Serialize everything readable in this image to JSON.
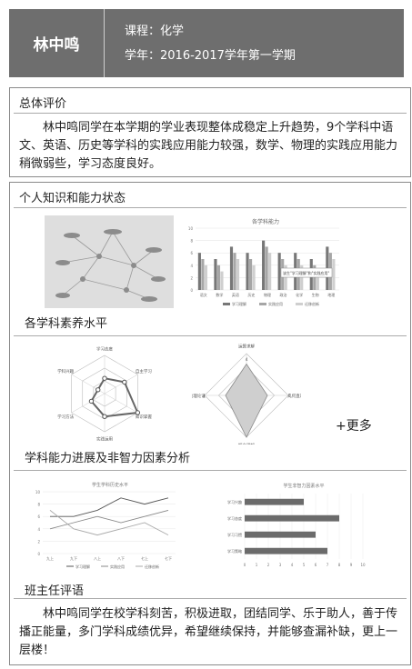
{
  "header": {
    "name": "林中鸣",
    "course": "课程：化学",
    "term": "学年：2016-2017学年第一学期"
  },
  "overall": {
    "title": "总体评价",
    "text": "林中鸣同学在本学期的学业表现整体成稳定上升趋势，9个学科中语文、英语、历史等学科的实践应用能力较强，数学、物理的实践应用能力稍微弱些，学习态度良好。"
  },
  "knowledge": {
    "title": "个人知识和能力状态",
    "literacy_label": "各学科素养水平",
    "ability_label": "学科能力进展及非智力因素分析",
    "more_label": "+更多",
    "teacher_title": "班主任评语",
    "teacher_text": "林中鸣同学在校学科刻苦，积极进取，团结同学、乐于助人，善于传播正能量，多门学科成绩优异，希望继续保持，并能够查漏补缺，更上一层楼！"
  },
  "chart_data": [
    {
      "type": "bar",
      "title": "各学科能力",
      "categories": [
        "语文",
        "数学",
        "英语",
        "历史",
        "物理",
        "政治",
        "化学",
        "生物",
        "地理"
      ],
      "series": [
        {
          "name": "学习理解",
          "values": [
            6,
            5,
            7,
            6,
            8,
            6,
            6,
            5,
            7
          ]
        },
        {
          "name": "实践应用",
          "values": [
            5,
            4,
            6,
            5,
            7,
            5,
            5,
            4,
            6
          ]
        },
        {
          "name": "迁移创新",
          "values": [
            4,
            3,
            5,
            4,
            6,
            4,
            4,
            3,
            5
          ]
        }
      ],
      "ylim": [
        0,
        10
      ],
      "annotation": "该生\"学习理解\"和\"实践应用\""
    },
    {
      "type": "radar",
      "title": "",
      "axes": [
        "学习态度",
        "自主学习",
        "知识掌握",
        "实践运用",
        "学习方法",
        "学科兴趣"
      ],
      "values": [
        2,
        3,
        5,
        3,
        2,
        1
      ]
    },
    {
      "type": "radar",
      "title": "",
      "axes": [
        "运算求解",
        "几何直观",
        "概念理解",
        "推理论证"
      ],
      "ticks": [
        "4",
        "4",
        "4",
        "4"
      ],
      "values": [
        3,
        2,
        4,
        2
      ]
    },
    {
      "type": "line",
      "title": "学生学科历史水平",
      "categories": [
        "九上",
        "九下",
        "八上",
        "八下",
        "七上",
        "七下"
      ],
      "series": [
        {
          "name": "学习理解",
          "values": [
            6,
            6,
            7,
            9,
            8,
            9
          ]
        },
        {
          "name": "实践应用",
          "values": [
            4,
            5,
            6,
            5,
            6,
            7
          ]
        },
        {
          "name": "迁移创新",
          "values": [
            7,
            4,
            3,
            4,
            5,
            3
          ]
        }
      ],
      "ylim": [
        0,
        10
      ]
    },
    {
      "type": "bar",
      "title": "学生非智力因素水平",
      "categories": [
        "学习兴趣",
        "学习态度",
        "学习习惯",
        "学习策略"
      ],
      "values": [
        5,
        8,
        6,
        7
      ],
      "xlim": [
        0,
        10
      ]
    }
  ]
}
